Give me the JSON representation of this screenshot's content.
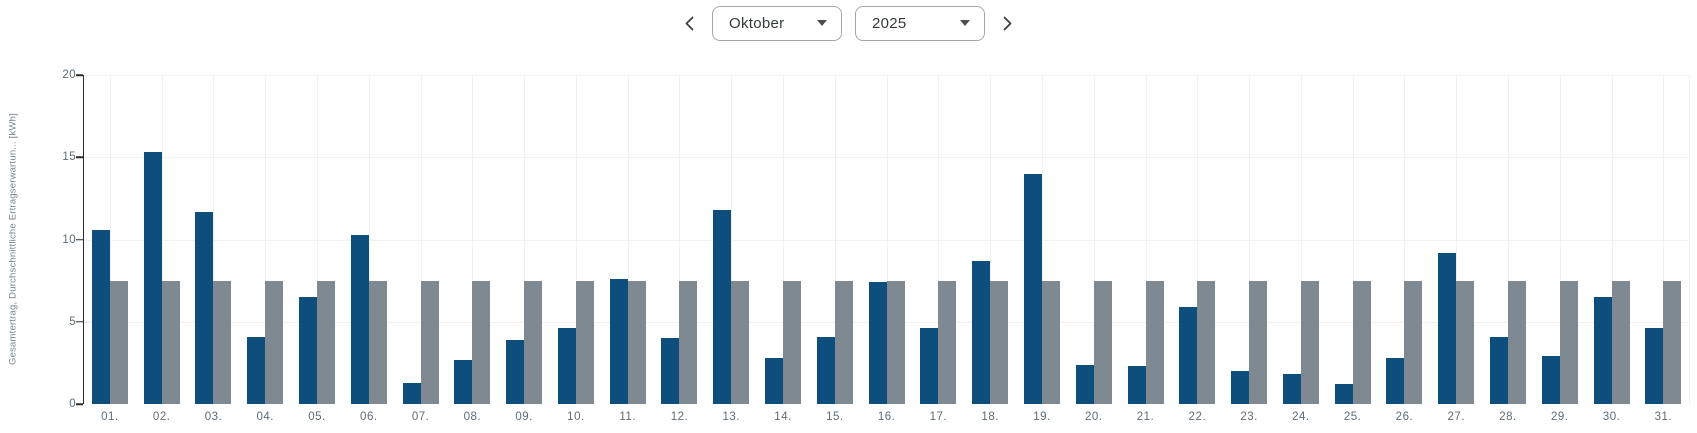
{
  "header": {
    "month_value": "Oktober",
    "year_value": "2025",
    "icons": {
      "previous": "chevron-left",
      "next": "chevron-right",
      "dropdown": "caret-down"
    }
  },
  "colors": {
    "total_yield": "#0d4e7d",
    "expected_yield": "#7f8991",
    "axis": "#2a2a2a",
    "grid": "#f1f1f1",
    "tick_text": "#5e6b76"
  },
  "chart_data": {
    "type": "bar",
    "title": "",
    "ylabel": "Gesamtertrag, Durchschnittliche Ertragserwartun... [kWh]",
    "xlabel": "",
    "ylim": [
      0,
      20
    ],
    "yticks": [
      0,
      5,
      10,
      15,
      20
    ],
    "grid": true,
    "legend_position": "none",
    "categories": [
      "01.",
      "02.",
      "03.",
      "04.",
      "05.",
      "06.",
      "07.",
      "08.",
      "09.",
      "10.",
      "11.",
      "12.",
      "13.",
      "14.",
      "15.",
      "16.",
      "17.",
      "18.",
      "19.",
      "20.",
      "21.",
      "22.",
      "23.",
      "24.",
      "25.",
      "26.",
      "27.",
      "28.",
      "29.",
      "30.",
      "31."
    ],
    "series": [
      {
        "name": "Gesamtertrag",
        "color": "#0d4e7d",
        "values": [
          10.6,
          15.3,
          11.7,
          4.1,
          6.5,
          10.3,
          1.3,
          2.7,
          3.9,
          4.6,
          7.6,
          4.0,
          11.8,
          2.8,
          4.1,
          7.4,
          4.6,
          8.7,
          14.0,
          2.4,
          2.3,
          5.9,
          2.0,
          1.8,
          1.2,
          2.8,
          9.2,
          4.1,
          2.9,
          6.5,
          4.6
        ]
      },
      {
        "name": "Durchschnittliche Ertragserwartung",
        "color": "#7f8991",
        "values": [
          7.5,
          7.5,
          7.5,
          7.5,
          7.5,
          7.5,
          7.5,
          7.5,
          7.5,
          7.5,
          7.5,
          7.5,
          7.5,
          7.5,
          7.5,
          7.5,
          7.5,
          7.5,
          7.5,
          7.5,
          7.5,
          7.5,
          7.5,
          7.5,
          7.5,
          7.5,
          7.5,
          7.5,
          7.5,
          7.5,
          7.5
        ]
      }
    ]
  }
}
